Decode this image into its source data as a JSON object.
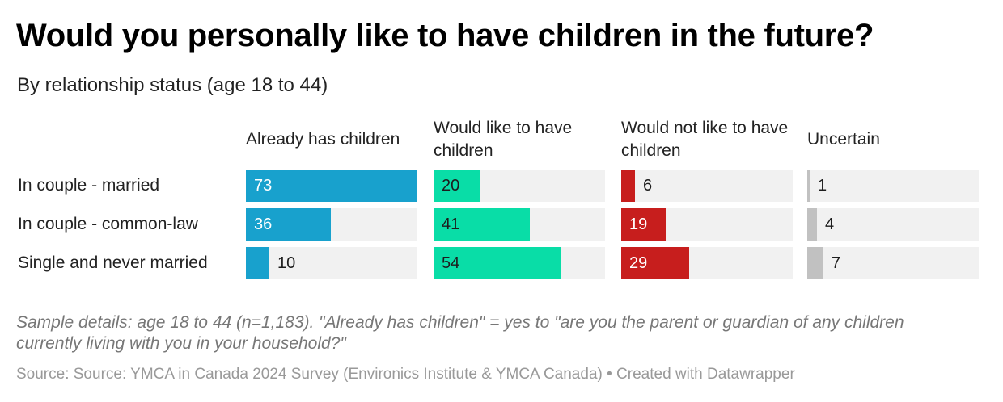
{
  "title": "Would you personally like to have children in the future?",
  "subtitle": "By relationship status (age 18 to 44)",
  "notes": "Sample details: age 18 to 44 (n=1,183). \"Already has children\" = yes to \"are you the parent or guardian of any children currently living with you in your household?\"",
  "source": "Source: Source: YMCA in Canada 2024 Survey (Environics Institute & YMCA Canada) • Created with Datawrapper",
  "chart_data": {
    "type": "bar",
    "title": "Would you personally like to have children in the future?",
    "subtitle": "By relationship status (age 18 to 44)",
    "categories": [
      "In couple - married",
      "In couple - common-law",
      "Single and never married"
    ],
    "series": [
      {
        "name": "Already has children",
        "color": "#18a1cd",
        "values": [
          73,
          36,
          10
        ]
      },
      {
        "name": "Would like to have children",
        "color": "#09dda7",
        "values": [
          20,
          41,
          54
        ]
      },
      {
        "name": "Would not like to have children",
        "color": "#c71e1d",
        "values": [
          6,
          19,
          29
        ]
      },
      {
        "name": "Uncertain",
        "color": "#c1c1c1",
        "values": [
          1,
          4,
          7
        ]
      }
    ],
    "xlim": [
      0,
      73
    ],
    "grid": false,
    "legend": "column headers"
  }
}
